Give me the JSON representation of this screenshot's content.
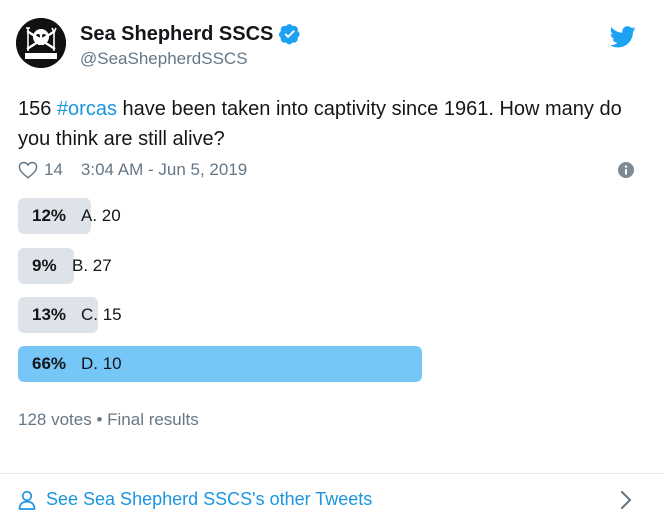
{
  "account": {
    "display_name": "Sea Shepherd SSCS",
    "handle": "@SeaShepherdSSCS",
    "avatar_caption": "SEA SHEPHERD"
  },
  "tweet": {
    "text_before": "156 ",
    "hashtag": "#orcas",
    "text_after": " have been taken into captivity since 1961. How many do you think are still alive?",
    "likes": "14",
    "timestamp": "3:04 AM - Jun 5, 2019"
  },
  "poll": {
    "options": [
      {
        "percent_label": "12%",
        "label": "A. 20",
        "percent": 12
      },
      {
        "percent_label": "9%",
        "label": "B. 27",
        "percent": 9
      },
      {
        "percent_label": "13%",
        "label": "C. 15",
        "percent": 13
      },
      {
        "percent_label": "66%",
        "label": "D. 10",
        "percent": 66
      }
    ],
    "summary": "128 votes • Final results"
  },
  "footer": {
    "other_tweets_link": "See Sea Shepherd SSCS's other Tweets"
  },
  "colors": {
    "accent": "#1b95e0",
    "poll_bar": "#dde3e8",
    "poll_winner": "#76c6f7",
    "secondary_text": "#657786"
  },
  "icons": [
    "verified-badge-icon",
    "twitter-bird-icon",
    "heart-icon",
    "info-icon",
    "person-icon",
    "chevron-right-icon"
  ]
}
